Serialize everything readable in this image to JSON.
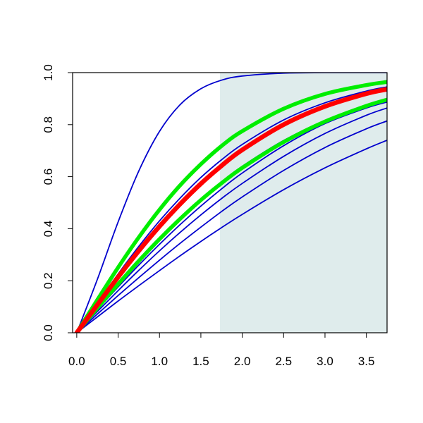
{
  "chart_data": {
    "type": "line",
    "title": "",
    "xlabel": "",
    "ylabel": "",
    "xlim": [
      -0.05,
      3.75
    ],
    "ylim": [
      0.0,
      1.0
    ],
    "grid": false,
    "shaded_region": {
      "x_from": 1.73,
      "x_to": 3.75,
      "color": "#dfecec"
    },
    "x_ticks": [
      {
        "value": 0.0,
        "label": "0.0"
      },
      {
        "value": 0.5,
        "label": "0.5"
      },
      {
        "value": 1.0,
        "label": "1.0"
      },
      {
        "value": 1.5,
        "label": "1.5"
      },
      {
        "value": 2.0,
        "label": "2.0"
      },
      {
        "value": 2.5,
        "label": "2.5"
      },
      {
        "value": 3.0,
        "label": "3.0"
      },
      {
        "value": 3.5,
        "label": "3.5"
      }
    ],
    "y_ticks": [
      {
        "value": 0.0,
        "label": "0.0"
      },
      {
        "value": 0.2,
        "label": "0.2"
      },
      {
        "value": 0.4,
        "label": "0.4"
      },
      {
        "value": 0.6,
        "label": "0.6"
      },
      {
        "value": 0.8,
        "label": "0.8"
      },
      {
        "value": 1.0,
        "label": "1.0"
      }
    ],
    "series": [
      {
        "color": "#0000cd",
        "width": "thin",
        "points": [
          [
            0,
            0
          ],
          [
            0.25,
            0.206
          ],
          [
            0.5,
            0.426
          ],
          [
            0.75,
            0.622
          ],
          [
            1.0,
            0.774
          ],
          [
            1.25,
            0.877
          ],
          [
            1.5,
            0.938
          ],
          [
            1.75,
            0.971
          ],
          [
            2.0,
            0.987
          ],
          [
            2.5,
            0.998
          ],
          [
            3.0,
            1.0
          ],
          [
            3.75,
            1.0
          ]
        ]
      },
      {
        "color": "#0000cd",
        "width": "thin",
        "points": [
          [
            0,
            0
          ],
          [
            0.25,
            0.115
          ],
          [
            0.5,
            0.226
          ],
          [
            0.75,
            0.332
          ],
          [
            1.0,
            0.43
          ],
          [
            1.25,
            0.518
          ],
          [
            1.5,
            0.597
          ],
          [
            1.75,
            0.665
          ],
          [
            2.0,
            0.724
          ],
          [
            2.5,
            0.818
          ],
          [
            3.0,
            0.884
          ],
          [
            3.5,
            0.929
          ],
          [
            3.75,
            0.945
          ]
        ]
      },
      {
        "color": "#0000cd",
        "width": "thin",
        "points": [
          [
            0,
            0
          ],
          [
            0.25,
            0.095
          ],
          [
            0.5,
            0.188
          ],
          [
            0.75,
            0.277
          ],
          [
            1.0,
            0.362
          ],
          [
            1.25,
            0.441
          ],
          [
            1.5,
            0.514
          ],
          [
            1.75,
            0.58
          ],
          [
            2.0,
            0.64
          ],
          [
            2.5,
            0.739
          ],
          [
            3.0,
            0.816
          ],
          [
            3.5,
            0.874
          ],
          [
            3.75,
            0.896
          ]
        ]
      },
      {
        "color": "#0000cd",
        "width": "thin",
        "points": [
          [
            0,
            0
          ],
          [
            0.25,
            0.089
          ],
          [
            0.5,
            0.176
          ],
          [
            0.75,
            0.26
          ],
          [
            1.0,
            0.34
          ],
          [
            1.25,
            0.416
          ],
          [
            1.5,
            0.487
          ],
          [
            1.75,
            0.553
          ],
          [
            2.0,
            0.614
          ],
          [
            2.5,
            0.719
          ],
          [
            3.0,
            0.804
          ],
          [
            3.5,
            0.864
          ],
          [
            3.75,
            0.887
          ]
        ]
      },
      {
        "color": "#0000cd",
        "width": "thin",
        "points": [
          [
            0,
            0
          ],
          [
            0.25,
            0.082
          ],
          [
            0.5,
            0.162
          ],
          [
            0.75,
            0.24
          ],
          [
            1.0,
            0.315
          ],
          [
            1.25,
            0.386
          ],
          [
            1.5,
            0.453
          ],
          [
            1.75,
            0.516
          ],
          [
            2.0,
            0.574
          ],
          [
            2.5,
            0.678
          ],
          [
            3.0,
            0.766
          ],
          [
            3.5,
            0.836
          ],
          [
            3.75,
            0.864
          ]
        ]
      },
      {
        "color": "#0000cd",
        "width": "thin",
        "points": [
          [
            0,
            0
          ],
          [
            0.25,
            0.072
          ],
          [
            0.5,
            0.143
          ],
          [
            0.75,
            0.212
          ],
          [
            1.0,
            0.279
          ],
          [
            1.25,
            0.344
          ],
          [
            1.5,
            0.406
          ],
          [
            1.75,
            0.466
          ],
          [
            2.0,
            0.522
          ],
          [
            2.5,
            0.624
          ],
          [
            3.0,
            0.712
          ],
          [
            3.5,
            0.784
          ],
          [
            3.75,
            0.814
          ]
        ]
      },
      {
        "color": "#0000cd",
        "width": "thin",
        "points": [
          [
            0,
            0
          ],
          [
            0.25,
            0.061
          ],
          [
            0.5,
            0.122
          ],
          [
            0.75,
            0.181
          ],
          [
            1.0,
            0.239
          ],
          [
            1.25,
            0.296
          ],
          [
            1.5,
            0.351
          ],
          [
            1.75,
            0.404
          ],
          [
            2.0,
            0.455
          ],
          [
            2.5,
            0.55
          ],
          [
            3.0,
            0.634
          ],
          [
            3.5,
            0.707
          ],
          [
            3.75,
            0.74
          ]
        ]
      },
      {
        "color": "#00ee00",
        "width": "thick",
        "points": [
          [
            0,
            0
          ],
          [
            0.25,
            0.127
          ],
          [
            0.5,
            0.251
          ],
          [
            0.75,
            0.367
          ],
          [
            1.0,
            0.473
          ],
          [
            1.25,
            0.567
          ],
          [
            1.5,
            0.648
          ],
          [
            1.75,
            0.718
          ],
          [
            2.0,
            0.775
          ],
          [
            2.5,
            0.861
          ],
          [
            3.0,
            0.918
          ],
          [
            3.5,
            0.952
          ],
          [
            3.75,
            0.964
          ]
        ]
      },
      {
        "color": "#00ee00",
        "width": "thick",
        "points": [
          [
            0,
            0
          ],
          [
            0.25,
            0.095
          ],
          [
            0.5,
            0.187
          ],
          [
            0.75,
            0.276
          ],
          [
            1.0,
            0.36
          ],
          [
            1.25,
            0.438
          ],
          [
            1.5,
            0.51
          ],
          [
            1.75,
            0.575
          ],
          [
            2.0,
            0.634
          ],
          [
            2.5,
            0.733
          ],
          [
            3.0,
            0.812
          ],
          [
            3.5,
            0.872
          ],
          [
            3.75,
            0.896
          ]
        ]
      },
      {
        "color": "#ff0000",
        "width": "thickest",
        "points": [
          [
            0,
            0
          ],
          [
            0.25,
            0.108
          ],
          [
            0.5,
            0.214
          ],
          [
            0.75,
            0.315
          ],
          [
            1.0,
            0.409
          ],
          [
            1.25,
            0.495
          ],
          [
            1.5,
            0.573
          ],
          [
            1.75,
            0.642
          ],
          [
            2.0,
            0.703
          ],
          [
            2.5,
            0.8
          ],
          [
            3.0,
            0.87
          ],
          [
            3.5,
            0.919
          ],
          [
            3.75,
            0.936
          ]
        ]
      }
    ]
  }
}
